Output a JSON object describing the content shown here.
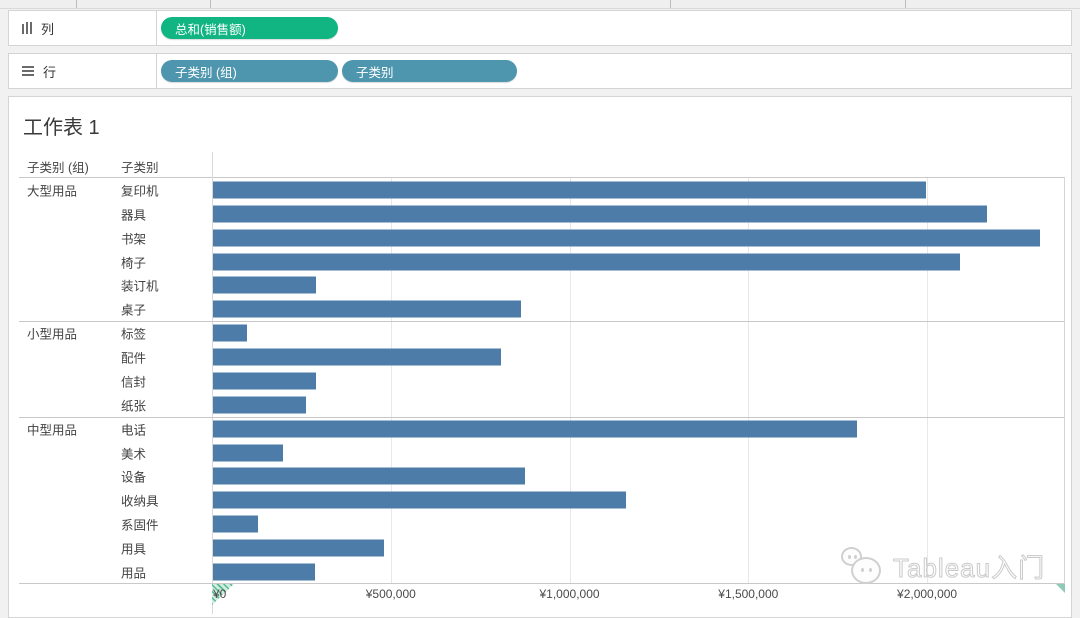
{
  "shelves": {
    "columns_label": "列",
    "rows_label": "行",
    "columns_pills": [
      {
        "label": "总和(销售额)",
        "color": "#10b581"
      }
    ],
    "rows_pills": [
      {
        "label": "子类别 (组)",
        "color": "#4e96ae"
      },
      {
        "label": "子类别",
        "color": "#4e96ae"
      }
    ]
  },
  "sheet_title": "工作表 1",
  "chart_data": {
    "type": "bar",
    "orientation": "horizontal",
    "title": "工作表 1",
    "value_field": "总和(销售额)",
    "column_headers": [
      "子类别 (组)",
      "子类别"
    ],
    "bar_color": "#4e7ca9",
    "axis": {
      "grid": true,
      "max": 2383000,
      "ticks": [
        {
          "label": "¥0",
          "value": 0
        },
        {
          "label": "¥500,000",
          "value": 500000
        },
        {
          "label": "¥1,000,000",
          "value": 1000000
        },
        {
          "label": "¥1,500,000",
          "value": 1500000
        },
        {
          "label": "¥2,000,000",
          "value": 2000000
        }
      ]
    },
    "groups": [
      {
        "name": "大型用品",
        "items": [
          {
            "label": "复印机",
            "value": 1995000
          },
          {
            "label": "器具",
            "value": 2166000
          },
          {
            "label": "书架",
            "value": 2313000
          },
          {
            "label": "椅子",
            "value": 2090000
          },
          {
            "label": "装订机",
            "value": 289000
          },
          {
            "label": "桌子",
            "value": 862000
          }
        ]
      },
      {
        "name": "小型用品",
        "items": [
          {
            "label": "标签",
            "value": 95000
          },
          {
            "label": "配件",
            "value": 806000
          },
          {
            "label": "信封",
            "value": 288000
          },
          {
            "label": "纸张",
            "value": 260000
          }
        ]
      },
      {
        "name": "中型用品",
        "items": [
          {
            "label": "电话",
            "value": 1802000
          },
          {
            "label": "美术",
            "value": 196000
          },
          {
            "label": "设备",
            "value": 873000
          },
          {
            "label": "收纳具",
            "value": 1154000
          },
          {
            "label": "系固件",
            "value": 127000
          },
          {
            "label": "用具",
            "value": 478000
          },
          {
            "label": "用品",
            "value": 285000
          }
        ]
      }
    ]
  },
  "watermark": {
    "text": "Tableau入门"
  }
}
